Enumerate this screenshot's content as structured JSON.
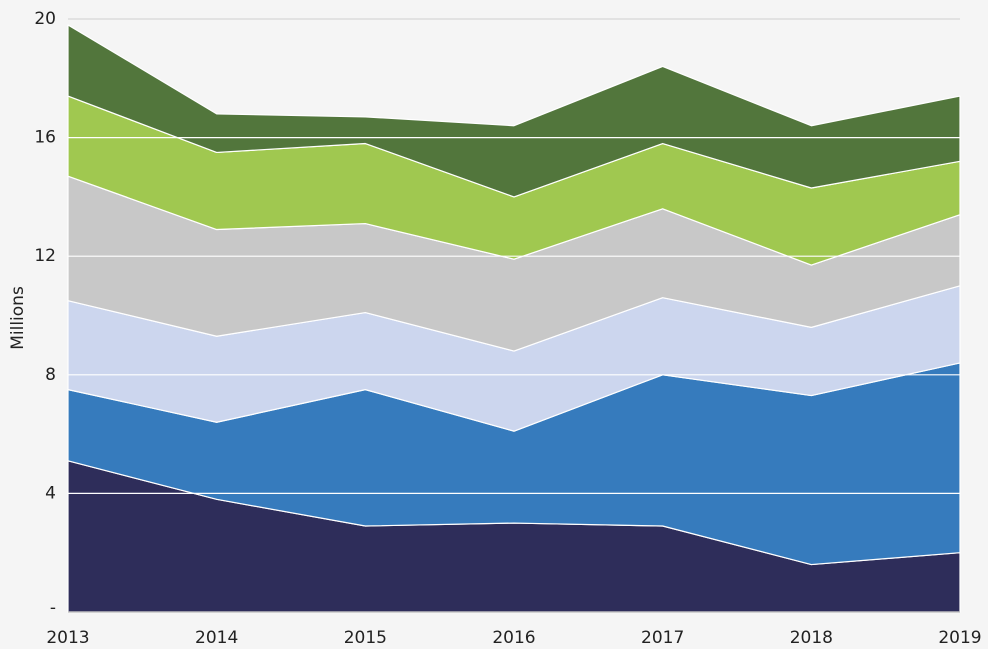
{
  "chart_data": {
    "type": "stacked_area",
    "y_label": "Millions",
    "categories": [
      "2013",
      "2014",
      "2015",
      "2016",
      "2017",
      "2018",
      "2019"
    ],
    "series": [
      {
        "color": "#2e2d5a",
        "values": [
          5.1,
          3.8,
          2.9,
          3.0,
          2.9,
          1.6,
          2.0
        ]
      },
      {
        "color": "#367bbd",
        "values": [
          2.4,
          2.6,
          4.6,
          3.1,
          5.1,
          5.7,
          6.4
        ]
      },
      {
        "color": "#ccd6ee",
        "values": [
          3.0,
          2.9,
          2.6,
          2.7,
          2.6,
          2.3,
          2.6
        ]
      },
      {
        "color": "#c8c8c8",
        "values": [
          4.2,
          3.6,
          3.0,
          3.1,
          3.0,
          2.1,
          2.4
        ]
      },
      {
        "color": "#a0c850",
        "values": [
          2.7,
          2.6,
          2.7,
          2.1,
          2.2,
          2.6,
          1.8
        ]
      },
      {
        "color": "#52763c",
        "values": [
          2.4,
          1.3,
          0.9,
          2.4,
          2.6,
          2.1,
          2.2
        ]
      }
    ],
    "ylim": [
      0,
      20
    ],
    "yticks": [
      {
        "value": 0,
        "label": "-"
      },
      4,
      8,
      12,
      16,
      20
    ],
    "grid": true
  }
}
